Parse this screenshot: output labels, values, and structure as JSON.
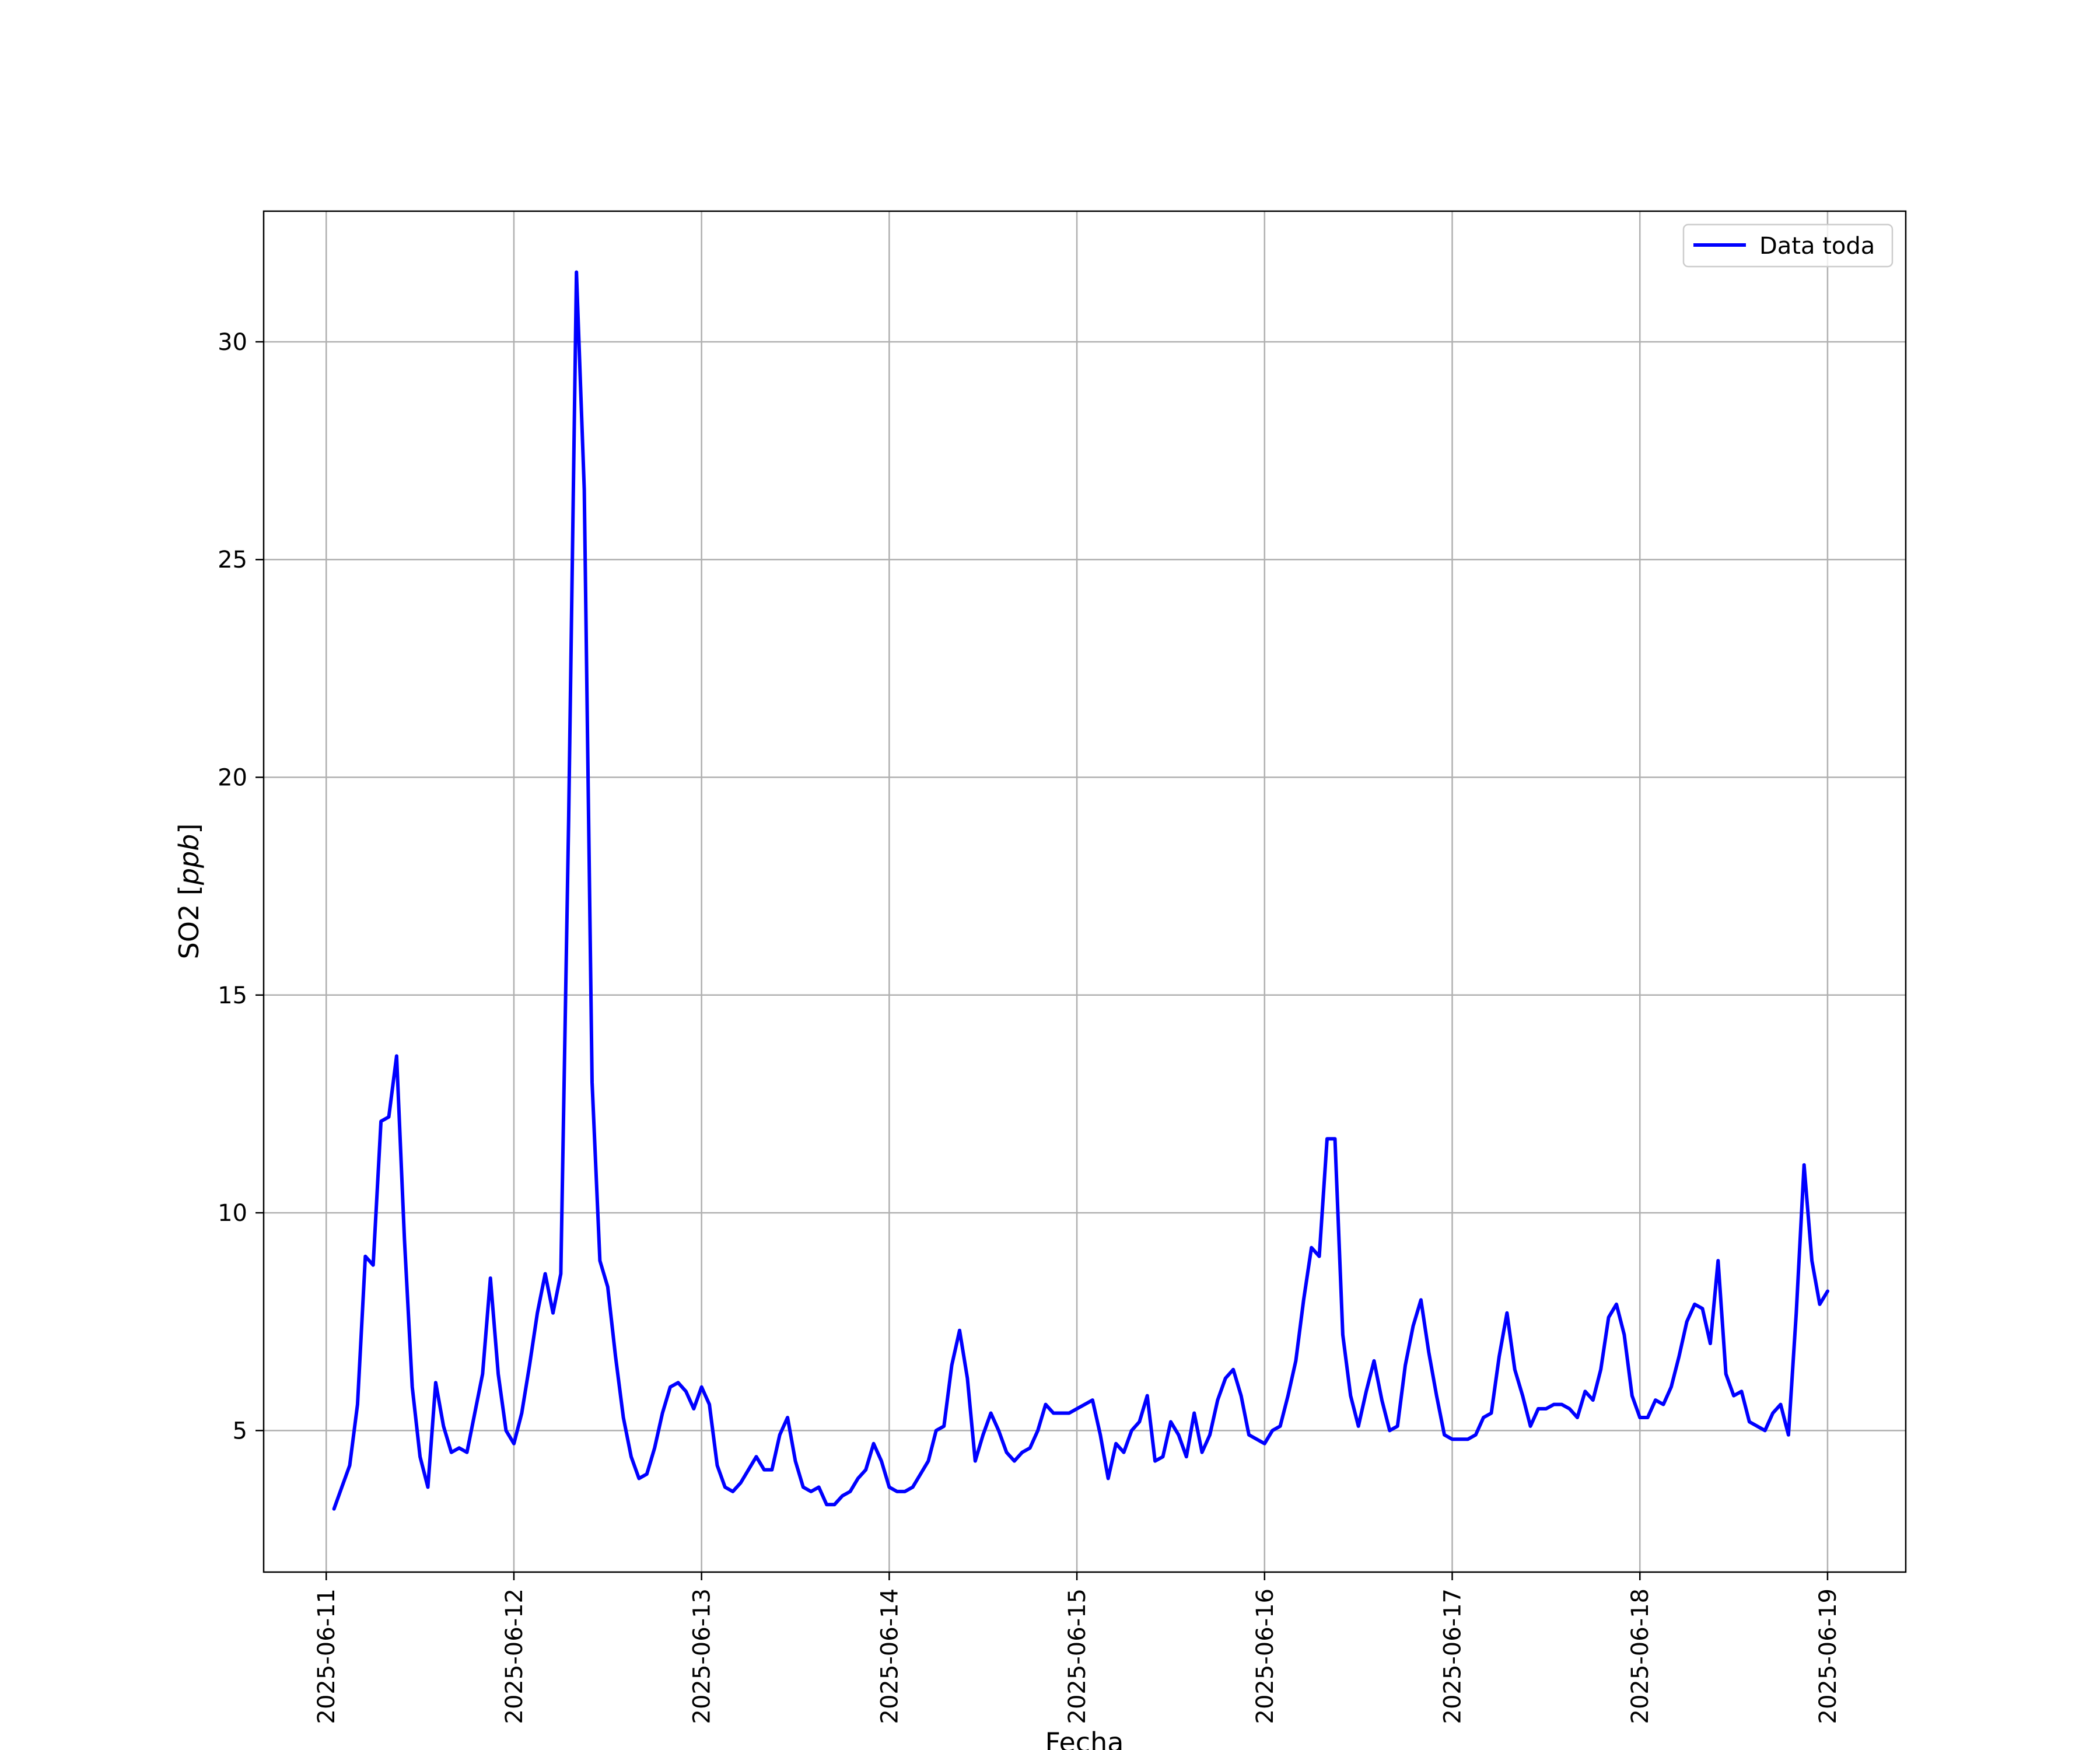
{
  "chart_data": {
    "type": "line",
    "title": "",
    "xlabel": "Fecha",
    "ylabel_prefix": "SO2 [",
    "ylabel_unit": "ppb",
    "ylabel_suffix": "]",
    "x_ticks": [
      "2025-06-11",
      "2025-06-12",
      "2025-06-13",
      "2025-06-14",
      "2025-06-15",
      "2025-06-16",
      "2025-06-17",
      "2025-06-18",
      "2025-06-19"
    ],
    "y_ticks": [
      5,
      10,
      15,
      20,
      25,
      30
    ],
    "xlim": [
      "2025-06-10 16:00",
      "2025-06-19 10:00"
    ],
    "ylim": [
      1.75,
      33
    ],
    "grid": true,
    "legend_position": "top-right",
    "series": [
      {
        "name": "Data toda",
        "color": "#0000ff",
        "sample_interval_hours": 1,
        "start": "2025-06-11 01:00",
        "values": [
          3.2,
          3.7,
          4.2,
          5.6,
          9.0,
          8.8,
          12.1,
          12.2,
          13.6,
          9.4,
          6.0,
          4.4,
          3.7,
          6.1,
          5.1,
          4.5,
          4.6,
          4.5,
          5.4,
          6.3,
          8.5,
          6.3,
          5.0,
          4.7,
          5.4,
          6.5,
          7.7,
          8.6,
          7.7,
          8.6,
          19.0,
          31.6,
          26.6,
          13.0,
          8.9,
          8.3,
          6.7,
          5.3,
          4.4,
          3.9,
          4.0,
          4.6,
          5.4,
          6.0,
          6.1,
          5.9,
          5.5,
          6.0,
          5.6,
          4.2,
          3.7,
          3.6,
          3.8,
          4.1,
          4.4,
          4.1,
          4.1,
          4.9,
          5.3,
          4.3,
          3.7,
          3.6,
          3.7,
          3.3,
          3.3,
          3.5,
          3.6,
          3.9,
          4.1,
          4.7,
          4.3,
          3.7,
          3.6,
          3.6,
          3.7,
          4.0,
          4.3,
          5.0,
          5.1,
          6.5,
          7.3,
          6.2,
          4.3,
          4.9,
          5.4,
          5.0,
          4.5,
          4.3,
          4.5,
          4.6,
          5.0,
          5.6,
          5.4,
          5.4,
          5.4,
          5.5,
          5.6,
          5.7,
          4.9,
          3.9,
          4.7,
          4.5,
          5.0,
          5.2,
          5.8,
          4.3,
          4.4,
          5.2,
          4.9,
          4.4,
          5.4,
          4.5,
          4.9,
          5.7,
          6.2,
          6.4,
          5.8,
          4.9,
          4.8,
          4.7,
          5.0,
          5.1,
          5.8,
          6.6,
          8.0,
          9.2,
          9.0,
          11.7,
          11.7,
          7.2,
          5.8,
          5.1,
          5.9,
          6.6,
          5.7,
          5.0,
          5.1,
          6.5,
          7.4,
          8.0,
          6.8,
          5.8,
          4.9,
          4.8,
          4.8,
          4.8,
          4.9,
          5.3,
          5.4,
          6.7,
          7.7,
          6.4,
          5.8,
          5.1,
          5.5,
          5.5,
          5.6,
          5.6,
          5.5,
          5.3,
          5.9,
          5.7,
          6.4,
          7.6,
          7.9,
          7.2,
          5.8,
          5.3,
          5.3,
          5.7,
          5.6,
          6.0,
          6.7,
          7.5,
          7.9,
          7.8,
          7.0,
          8.9,
          6.3,
          5.8,
          5.9,
          5.2,
          5.1,
          5.0,
          5.4,
          5.6,
          4.9,
          7.7,
          11.1,
          8.9,
          7.9,
          8.2
        ]
      }
    ]
  }
}
